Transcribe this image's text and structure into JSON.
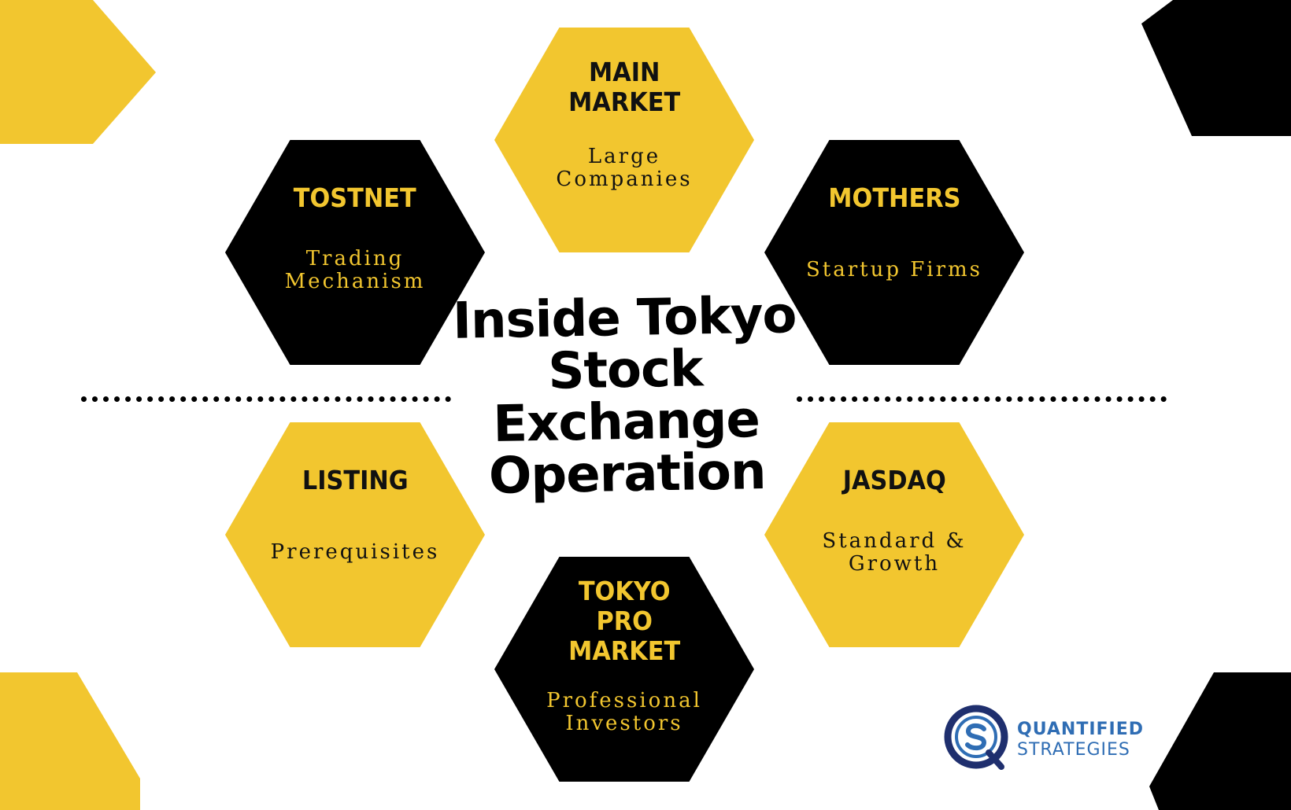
{
  "colors": {
    "yellow": "#f2c62f",
    "black": "#000000",
    "brand_blue": "#2f6db4",
    "brand_navy": "#1f2f6e"
  },
  "center_title": "Inside Tokyo\nStock\nExchange\nOperation",
  "hexagons": {
    "main_market": {
      "title": "MAIN\nMARKET",
      "subtitle": "Large\nCompanies"
    },
    "tostnet": {
      "title": "TOSTNET",
      "subtitle": "Trading\nMechanism"
    },
    "mothers": {
      "title": "MOTHERS",
      "subtitle": "Startup Firms"
    },
    "listing": {
      "title": "LISTING",
      "subtitle": "Prerequisites"
    },
    "jasdaq": {
      "title": "JASDAQ",
      "subtitle": "Standard &\nGrowth"
    },
    "tokyo_pro_market": {
      "title": "TOKYO\nPRO\nMARKET",
      "subtitle": "Professional\nInvestors"
    }
  },
  "logo": {
    "line1": "QUANTIFIED",
    "line2": "STRATEGIES",
    "icon": "qs-logo-icon"
  }
}
